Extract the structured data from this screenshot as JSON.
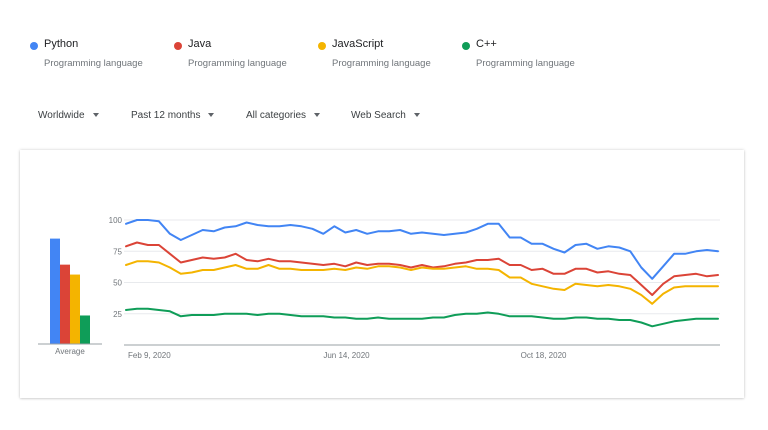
{
  "legend": [
    {
      "name": "Python",
      "subtitle": "Programming language",
      "color": "#4285f4"
    },
    {
      "name": "Java",
      "subtitle": "Programming language",
      "color": "#db4437"
    },
    {
      "name": "JavaScript",
      "subtitle": "Programming language",
      "color": "#f4b400"
    },
    {
      "name": "C++",
      "subtitle": "Programming language",
      "color": "#0f9d58"
    }
  ],
  "filters": {
    "region": "Worldwide",
    "time": "Past 12 months",
    "category": "All categories",
    "search_type": "Web Search"
  },
  "chart_data": [
    {
      "type": "bar",
      "categories": [
        "Python",
        "Java",
        "JavaScript",
        "C++"
      ],
      "values": [
        85,
        64,
        56,
        23
      ],
      "colors": [
        "#4285f4",
        "#db4437",
        "#f4b400",
        "#0f9d58"
      ],
      "xlabel": "Average",
      "ylim": [
        0,
        100
      ]
    },
    {
      "type": "line",
      "x_tick_labels": [
        "Feb 9, 2020",
        "Jun 14, 2020",
        "Oct 18, 2020"
      ],
      "y_ticks": [
        25,
        50,
        75,
        100
      ],
      "ylim": [
        0,
        100
      ],
      "grid": true,
      "series": [
        {
          "name": "Python",
          "color": "#4285f4",
          "values": [
            97,
            100,
            100,
            99,
            89,
            84,
            88,
            92,
            91,
            94,
            95,
            98,
            96,
            95,
            95,
            96,
            95,
            93,
            89,
            95,
            90,
            92,
            89,
            91,
            91,
            92,
            89,
            90,
            89,
            88,
            89,
            90,
            93,
            97,
            97,
            86,
            86,
            81,
            81,
            77,
            74,
            80,
            81,
            77,
            79,
            78,
            75,
            62,
            53,
            63,
            73,
            73,
            75,
            76,
            75
          ]
        },
        {
          "name": "Java",
          "color": "#db4437",
          "values": [
            79,
            82,
            80,
            80,
            73,
            66,
            68,
            70,
            69,
            70,
            73,
            68,
            67,
            69,
            67,
            67,
            66,
            65,
            64,
            65,
            63,
            66,
            64,
            65,
            65,
            64,
            62,
            64,
            62,
            63,
            65,
            66,
            68,
            68,
            69,
            64,
            64,
            60,
            61,
            57,
            57,
            61,
            61,
            58,
            59,
            57,
            56,
            48,
            40,
            49,
            55,
            56,
            57,
            55,
            56
          ]
        },
        {
          "name": "JavaScript",
          "color": "#f4b400",
          "values": [
            64,
            67,
            67,
            66,
            62,
            57,
            58,
            60,
            60,
            62,
            64,
            61,
            61,
            64,
            61,
            61,
            60,
            60,
            60,
            61,
            60,
            62,
            61,
            63,
            63,
            62,
            60,
            62,
            61,
            61,
            62,
            63,
            61,
            61,
            60,
            54,
            54,
            49,
            47,
            45,
            44,
            49,
            48,
            47,
            48,
            47,
            45,
            40,
            33,
            41,
            46,
            47,
            47,
            47,
            47
          ]
        },
        {
          "name": "C++",
          "color": "#0f9d58",
          "values": [
            28,
            29,
            29,
            28,
            27,
            23,
            24,
            24,
            24,
            25,
            25,
            25,
            24,
            25,
            25,
            24,
            23,
            23,
            23,
            22,
            22,
            21,
            21,
            22,
            21,
            21,
            21,
            21,
            22,
            22,
            24,
            25,
            25,
            26,
            25,
            23,
            23,
            23,
            22,
            21,
            21,
            22,
            22,
            21,
            21,
            20,
            20,
            18,
            15,
            17,
            19,
            20,
            21,
            21,
            21
          ]
        }
      ]
    }
  ]
}
